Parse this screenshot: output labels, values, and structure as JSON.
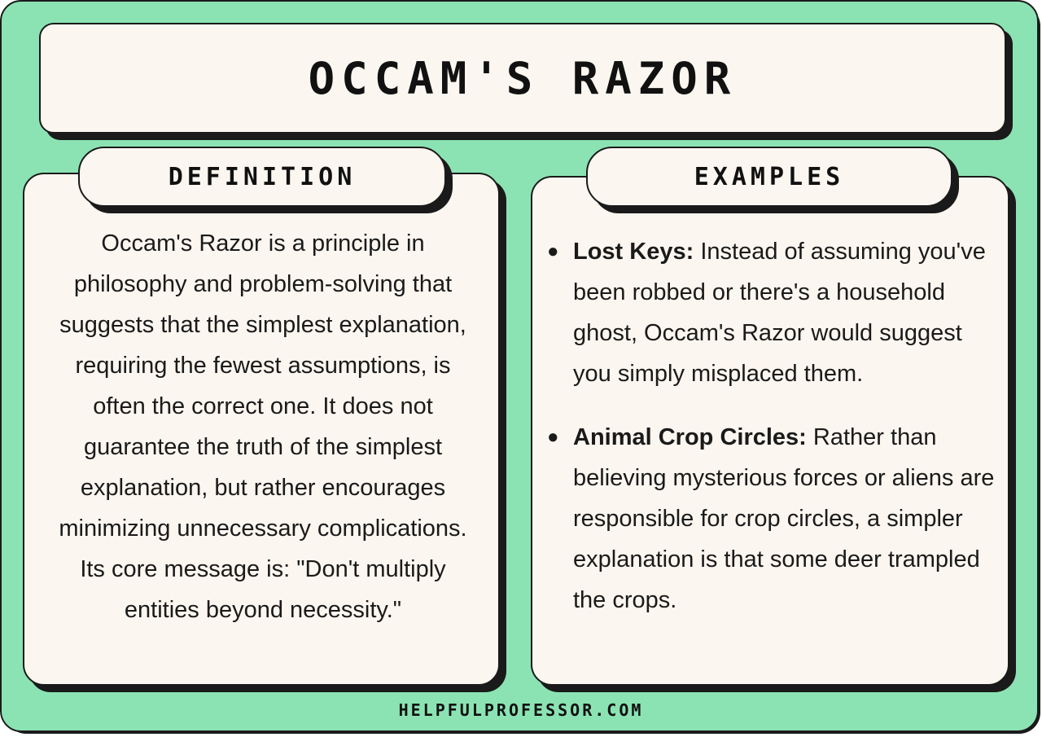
{
  "title": "OCCAM'S RAZOR",
  "definition": {
    "heading": "DEFINITION",
    "text": "Occam's Razor is a principle in philosophy and problem-solving that suggests that the simplest explanation, requiring the fewest assumptions, is often the correct one. It does not guarantee the truth of the simplest explanation, but rather encourages minimizing unnecessary complications. Its core message is: \"Don't multiply entities beyond necessity.\""
  },
  "examples": {
    "heading": "EXAMPLES",
    "items": [
      {
        "term": "Lost Keys:",
        "text": "Instead of assuming you've been robbed or there's a household ghost, Occam's Razor would suggest you simply misplaced them."
      },
      {
        "term": "Animal Crop Circles:",
        "text": "Rather than believing mysterious forces or aliens are responsible for crop circles, a simpler explanation is that some deer trampled the crops."
      }
    ]
  },
  "footer": "HELPFULPROFESSOR.COM",
  "colors": {
    "background": "#8be3b3",
    "card": "#fcf6f0",
    "ink": "#1a1a1a"
  }
}
